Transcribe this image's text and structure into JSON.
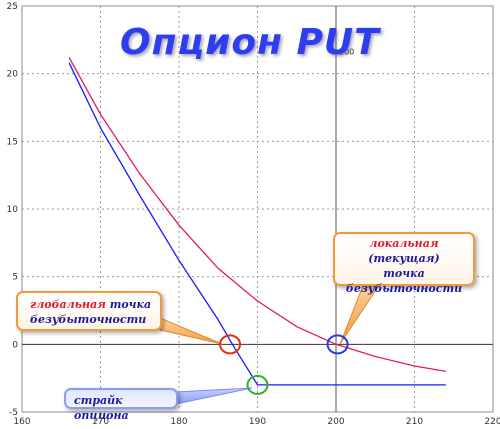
{
  "chart_data": {
    "type": "line",
    "title": "Опцион PUT",
    "xlim": [
      160,
      220
    ],
    "ylim": [
      -5,
      25
    ],
    "x_ticks": [
      "160",
      "170",
      "180",
      "190",
      "200",
      "210",
      "220"
    ],
    "y_ticks": [
      "-5",
      "0",
      "5",
      "10",
      "15",
      "20",
      "25"
    ],
    "vertical_line_label": "200",
    "grid": true,
    "series": [
      {
        "color": "#1a1aff",
        "x": [
          166,
          170,
          175,
          180,
          185,
          186.8,
          190,
          195,
          200,
          205,
          210,
          214
        ],
        "y": [
          20.8,
          16.0,
          11.0,
          6.2,
          1.8,
          0.0,
          -3.0,
          -3.0,
          -3.0,
          -3.0,
          -3.0,
          -3.0
        ]
      },
      {
        "color": "#e6176b",
        "x": [
          166,
          170,
          175,
          180,
          185,
          190,
          195,
          200,
          205,
          210,
          214
        ],
        "y": [
          21.2,
          17.0,
          12.6,
          8.8,
          5.6,
          3.2,
          1.3,
          0.0,
          -0.9,
          -1.6,
          -2.0
        ]
      }
    ],
    "annotations": [
      {
        "text_accent": "локальная",
        "text_rest": "(текущая)",
        "line2": "точка",
        "line3": "безубыточности",
        "point": [
          200.2,
          0
        ]
      },
      {
        "text_accent": "глобальная",
        "text_rest": "точка",
        "line2": "безубыточности",
        "point": [
          186.5,
          0
        ]
      },
      {
        "text": "страйк опциона",
        "point": [
          190,
          -3
        ]
      }
    ],
    "markers": [
      {
        "x": 186.5,
        "y": 0,
        "color": "#e03010"
      },
      {
        "x": 200.2,
        "y": 0,
        "color": "#2040e0"
      },
      {
        "x": 190,
        "y": -3,
        "color": "#30b030"
      }
    ]
  }
}
